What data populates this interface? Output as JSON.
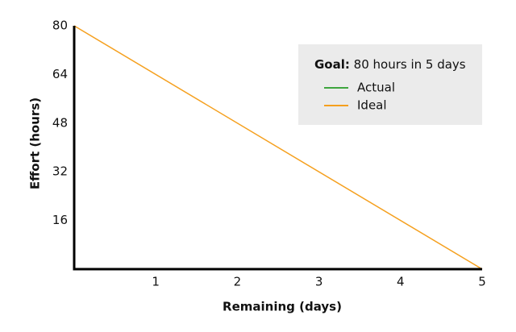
{
  "chart_data": {
    "type": "line",
    "x": [
      0,
      5
    ],
    "series": [
      {
        "name": "Actual",
        "color": "#3ea53e",
        "values": [
          null,
          null
        ]
      },
      {
        "name": "Ideal",
        "color": "#f5a01e",
        "values": [
          80,
          0
        ]
      }
    ],
    "xlim": [
      0,
      5
    ],
    "xticks": [
      1,
      2,
      3,
      4,
      5
    ],
    "ylim": [
      0,
      80
    ],
    "yticks": [
      16,
      32,
      48,
      64,
      80
    ],
    "x_label": "Remaining (days)",
    "y_label": "Effort (hours)",
    "annotation": {
      "label": "Goal:",
      "text": "80 hours in 5 days"
    }
  }
}
